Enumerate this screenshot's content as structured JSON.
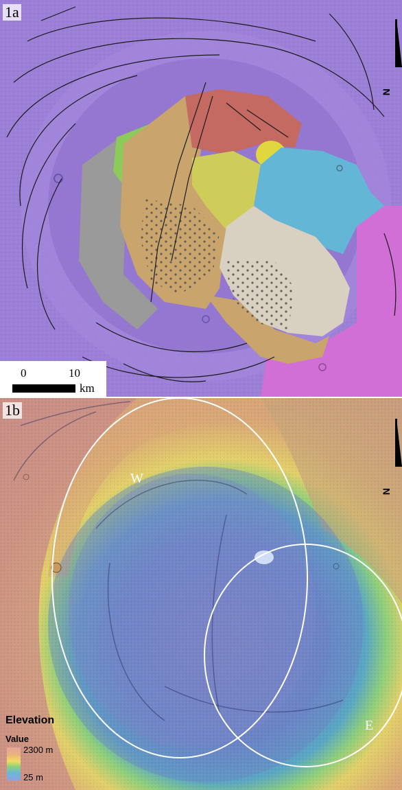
{
  "panel_a": {
    "label": "1a",
    "north_letter": "N",
    "scale": {
      "start": "0",
      "mid": "10",
      "unit": "km"
    }
  },
  "panel_b": {
    "label": "1b",
    "north_letter": "N",
    "region_west": "W",
    "region_east": "E",
    "legend": {
      "title": "Elevation",
      "subtitle": "Value",
      "max": "2300 m",
      "min": "25 m"
    }
  },
  "colors": {
    "background_a": "#9c7fd6",
    "caldera_floor": "#a790e0",
    "unit_red": "#c46a63",
    "unit_tan": "#c9a46d",
    "unit_yellow": "#cfcd5a",
    "unit_cyan": "#63b6d6",
    "unit_light": "#d8d0c0",
    "unit_magenta": "#d26fd6",
    "unit_green": "#8ccb5a",
    "unit_gray": "#9a9a9a",
    "rim_high": "#d98b72",
    "rim_mid": "#e2cf6a",
    "floor_low": "#6b84c6"
  },
  "icons": [
    "north-arrow-icon",
    "north-arrow-icon"
  ]
}
